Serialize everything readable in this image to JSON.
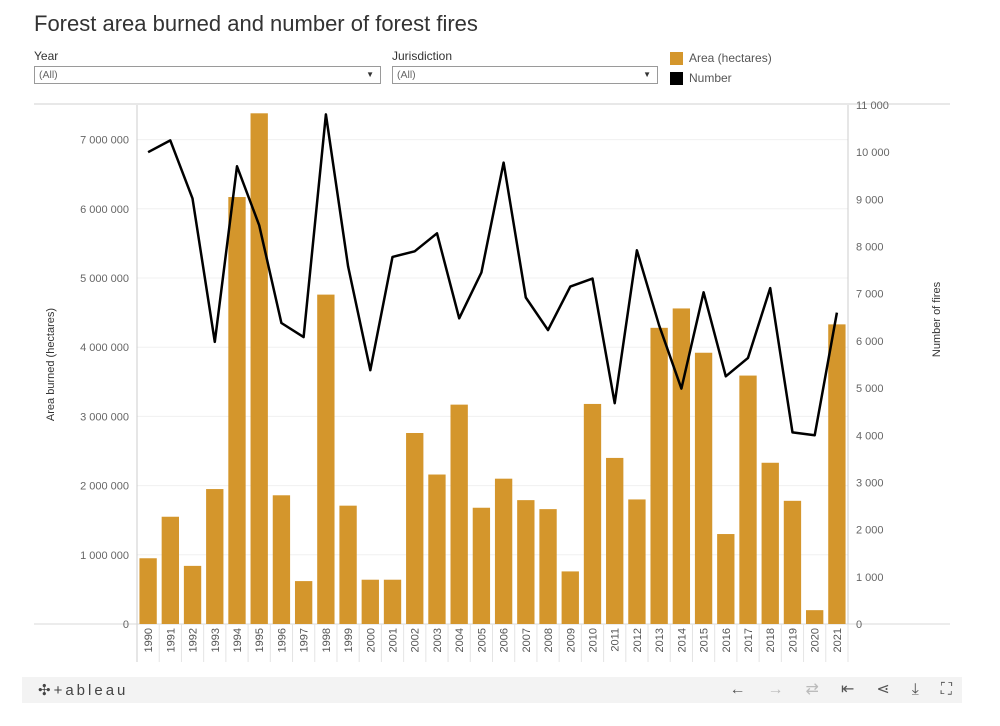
{
  "title": "Forest area burned and number of forest fires",
  "filters": {
    "year": {
      "label": "Year",
      "value": "(All)"
    },
    "jurisdiction": {
      "label": "Jurisdiction",
      "value": "(All)"
    }
  },
  "legend": [
    {
      "name": "Area (hectares)",
      "color": "#D4962C"
    },
    {
      "name": "Number",
      "color": "#000000"
    }
  ],
  "chart_data": {
    "type": "bar",
    "categories": [
      "1990",
      "1991",
      "1992",
      "1993",
      "1994",
      "1995",
      "1996",
      "1997",
      "1998",
      "1999",
      "2000",
      "2001",
      "2002",
      "2003",
      "2004",
      "2005",
      "2006",
      "2007",
      "2008",
      "2009",
      "2010",
      "2011",
      "2012",
      "2013",
      "2014",
      "2015",
      "2016",
      "2017",
      "2018",
      "2019",
      "2020",
      "2021"
    ],
    "series": [
      {
        "name": "Area (hectares)",
        "type": "bar",
        "axis": "left",
        "color": "#D4962C",
        "values": [
          950000,
          1550000,
          840000,
          1950000,
          6170000,
          7380000,
          1860000,
          620000,
          4760000,
          1710000,
          640000,
          640000,
          2760000,
          2160000,
          3170000,
          1680000,
          2100000,
          1790000,
          1660000,
          760000,
          3180000,
          2400000,
          1800000,
          4280000,
          4560000,
          3920000,
          1300000,
          3590000,
          2330000,
          1780000,
          200000,
          4330000
        ]
      },
      {
        "name": "Number",
        "type": "line",
        "axis": "right",
        "color": "#000000",
        "values": [
          10000,
          10250,
          9020,
          5980,
          9700,
          8450,
          6380,
          6080,
          10800,
          7580,
          5380,
          7780,
          7900,
          8280,
          6480,
          7450,
          9780,
          6920,
          6230,
          7150,
          7320,
          4680,
          7920,
          6330,
          4990,
          7030,
          5250,
          5640,
          7120,
          4060,
          4000,
          6600
        ]
      }
    ],
    "ylabel": "Area burned (hectares)",
    "y2label": "Number of fires",
    "ylim": [
      0,
      7500000
    ],
    "y2lim": [
      0,
      11000
    ],
    "yticks": [
      0,
      1000000,
      2000000,
      3000000,
      4000000,
      5000000,
      6000000,
      7000000
    ],
    "yticklabels": [
      "0",
      "1 000 000",
      "2 000 000",
      "3 000 000",
      "4 000 000",
      "5 000 000",
      "6 000 000",
      "7 000 000"
    ],
    "y2ticks": [
      0,
      1000,
      2000,
      3000,
      4000,
      5000,
      6000,
      7000,
      8000,
      9000,
      10000,
      11000
    ],
    "y2ticklabels": [
      "0",
      "1 000",
      "2 000",
      "3 000",
      "4 000",
      "5 000",
      "6 000",
      "7 000",
      "8 000",
      "9 000",
      "10 000",
      "11 000"
    ],
    "grid": true
  },
  "footer": {
    "logo": "+ableau"
  },
  "toolbar": [
    {
      "name": "undo-icon",
      "glyph": "←"
    },
    {
      "name": "redo-icon",
      "glyph": "→"
    },
    {
      "name": "revert-icon",
      "glyph": "⇄"
    },
    {
      "name": "reset-icon",
      "glyph": "⇤"
    },
    {
      "name": "share-icon",
      "glyph": "⋖"
    },
    {
      "name": "download-icon",
      "glyph": "⤓"
    },
    {
      "name": "fullscreen-icon",
      "glyph": "⛶"
    }
  ]
}
